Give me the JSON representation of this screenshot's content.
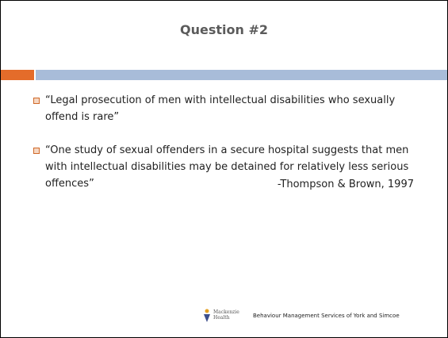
{
  "title": "Question #2",
  "bullets": [
    "“Legal prosecution of men with intellectual disabilities who sexually offend is rare”",
    "“One study of sexual offenders in a secure hospital suggests that men with intellectual disabilities may be detained for relatively less serious offences”"
  ],
  "citation": "-Thompson & Brown, 1997",
  "logo": {
    "line1": "Mackenzie",
    "line2": "Health"
  },
  "footer": "Behaviour Management Services of York and Simcoe"
}
